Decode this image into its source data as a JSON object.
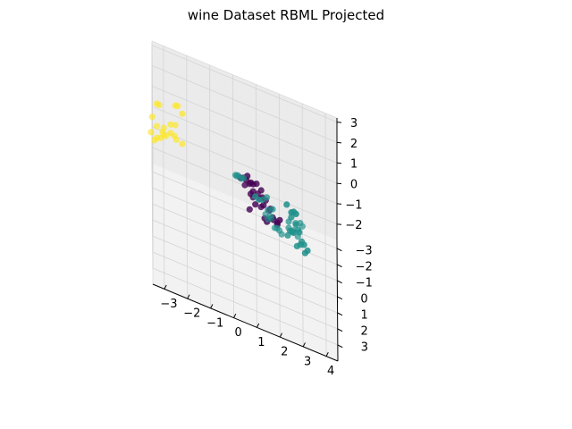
{
  "chart_data": {
    "type": "scatter",
    "title": "wine Dataset RBML Projected",
    "xlabel": "",
    "ylabel": "",
    "zlabel": "",
    "xlim": [
      -3.5,
      4.5
    ],
    "ylim": [
      -3.5,
      4.0
    ],
    "zlim": [
      -2.8,
      3.2
    ],
    "x_ticks": [
      "−3",
      "−2",
      "−1",
      "0",
      "1",
      "2",
      "3",
      "4"
    ],
    "y_ticks": [
      "−3",
      "−2",
      "−1",
      "0",
      "1",
      "2",
      "3"
    ],
    "z_ticks": [
      "−2",
      "−1",
      "0",
      "1",
      "2",
      "3"
    ],
    "grid": true,
    "legend": "none",
    "pane_color": "#f2f2f2",
    "series": [
      {
        "color": "#fde725",
        "points": [
          [
            -3.2,
            -1.1,
            2.1
          ],
          [
            -3.3,
            -1.25,
            2.0
          ],
          [
            -2.5,
            -1.55,
            2.05
          ],
          [
            -2.4,
            -1.45,
            2.15
          ],
          [
            -2.2,
            -0.9,
            2.3
          ],
          [
            -3.5,
            -1.4,
            1.15
          ],
          [
            -3.05,
            -0.8,
            1.1
          ],
          [
            -3.0,
            -1.2,
            1.0
          ],
          [
            -3.3,
            -1.5,
            0.7
          ],
          [
            -2.7,
            -1.65,
            0.95
          ],
          [
            -2.5,
            -1.6,
            1.05
          ],
          [
            -3.4,
            -0.95,
            0.4
          ],
          [
            -3.3,
            -1.3,
            0.3
          ],
          [
            -3.15,
            -1.05,
            0.55
          ],
          [
            -2.9,
            -1.45,
            0.45
          ],
          [
            -3.55,
            -1.55,
            0.25
          ],
          [
            -2.7,
            -1.7,
            0.5
          ],
          [
            -2.2,
            -1.25,
            0.55
          ],
          [
            -2.55,
            -1.35,
            0.7
          ],
          [
            -2.45,
            -1.55,
            0.4
          ],
          [
            -3.0,
            -1.75,
            0.2
          ]
        ]
      },
      {
        "color": "#440154",
        "points": [
          [
            0.3,
            1.2,
            2.0
          ],
          [
            0.45,
            1.05,
            1.95
          ],
          [
            0.6,
            1.1,
            2.15
          ],
          [
            0.75,
            1.3,
            2.05
          ],
          [
            0.85,
            1.15,
            1.9
          ],
          [
            0.55,
            0.8,
            1.7
          ],
          [
            0.7,
            0.7,
            1.5
          ],
          [
            0.85,
            0.9,
            1.35
          ],
          [
            1.0,
            0.65,
            1.6
          ],
          [
            1.2,
            0.75,
            1.45
          ],
          [
            0.5,
            0.4,
            1.1
          ],
          [
            0.75,
            0.6,
            0.95
          ],
          [
            1.05,
            0.55,
            1.05
          ],
          [
            1.25,
            0.85,
            1.2
          ],
          [
            0.95,
            0.95,
            0.8
          ],
          [
            1.3,
            1.05,
            1.0
          ],
          [
            1.4,
            0.5,
            0.85
          ],
          [
            1.15,
            0.35,
            0.7
          ],
          [
            0.85,
            0.25,
            0.55
          ],
          [
            1.2,
            0.45,
            0.4
          ],
          [
            1.55,
            0.65,
            0.55
          ],
          [
            1.45,
            1.1,
            0.3
          ],
          [
            1.75,
            1.0,
            0.45
          ],
          [
            1.35,
            0.75,
            0.15
          ],
          [
            1.7,
            0.55,
            0.2
          ],
          [
            1.6,
            0.2,
            0.3
          ],
          [
            1.9,
            0.7,
            0.05
          ],
          [
            1.6,
            1.2,
            0.6
          ],
          [
            2.0,
            1.3,
            0.8
          ],
          [
            0.7,
            0.9,
            0.4
          ],
          [
            1.9,
            0.9,
            0.3
          ]
        ]
      },
      {
        "color": "#21918c",
        "points": [
          [
            2.6,
            2.2,
            2.2
          ],
          [
            2.7,
            2.4,
            2.3
          ],
          [
            2.5,
            2.1,
            2.05
          ],
          [
            2.3,
            1.8,
            2.1
          ],
          [
            2.5,
            1.2,
            1.1
          ],
          [
            2.7,
            1.35,
            0.95
          ],
          [
            2.85,
            1.55,
            0.8
          ],
          [
            2.6,
            1.6,
            0.7
          ],
          [
            3.05,
            1.7,
            0.4
          ],
          [
            3.2,
            1.85,
            0.3
          ],
          [
            2.9,
            1.4,
            0.1
          ],
          [
            3.1,
            1.55,
            -0.1
          ],
          [
            2.75,
            1.2,
            -0.2
          ],
          [
            2.95,
            1.05,
            0.0
          ],
          [
            2.35,
            0.9,
            -0.1
          ],
          [
            2.55,
            1.0,
            0.25
          ],
          [
            2.45,
            1.25,
            0.45
          ],
          [
            2.8,
            0.85,
            0.35
          ],
          [
            0.2,
            -0.4,
            0.8
          ],
          [
            0.35,
            -0.55,
            0.6
          ],
          [
            0.1,
            -0.5,
            0.7
          ],
          [
            0.45,
            -0.2,
            0.95
          ],
          [
            0.15,
            -0.65,
            0.55
          ],
          [
            1.1,
            0.05,
            0.4
          ],
          [
            1.25,
            -0.15,
            0.3
          ],
          [
            1.45,
            -0.1,
            0.55
          ],
          [
            0.95,
            -0.3,
            0.2
          ],
          [
            1.7,
            0.1,
            0.25
          ],
          [
            2.6,
            -0.2,
            -0.6
          ],
          [
            2.4,
            -0.5,
            -0.5
          ],
          [
            1.6,
            -1.0,
            -1.0
          ],
          [
            1.5,
            -1.2,
            -0.9
          ],
          [
            1.9,
            -0.8,
            -1.3
          ],
          [
            1.4,
            -1.5,
            -1.4
          ],
          [
            2.0,
            -1.1,
            -1.6
          ],
          [
            1.8,
            -1.4,
            -1.8
          ],
          [
            1.5,
            -1.7,
            -1.75
          ],
          [
            1.65,
            -1.9,
            -1.8
          ],
          [
            2.1,
            -1.3,
            -1.9
          ],
          [
            2.7,
            -1.6,
            -1.3
          ],
          [
            2.9,
            -1.4,
            -1.05
          ],
          [
            3.0,
            -1.7,
            -1.4
          ],
          [
            2.8,
            -1.2,
            -1.6
          ],
          [
            2.4,
            -1.0,
            -1.2
          ]
        ]
      }
    ]
  }
}
